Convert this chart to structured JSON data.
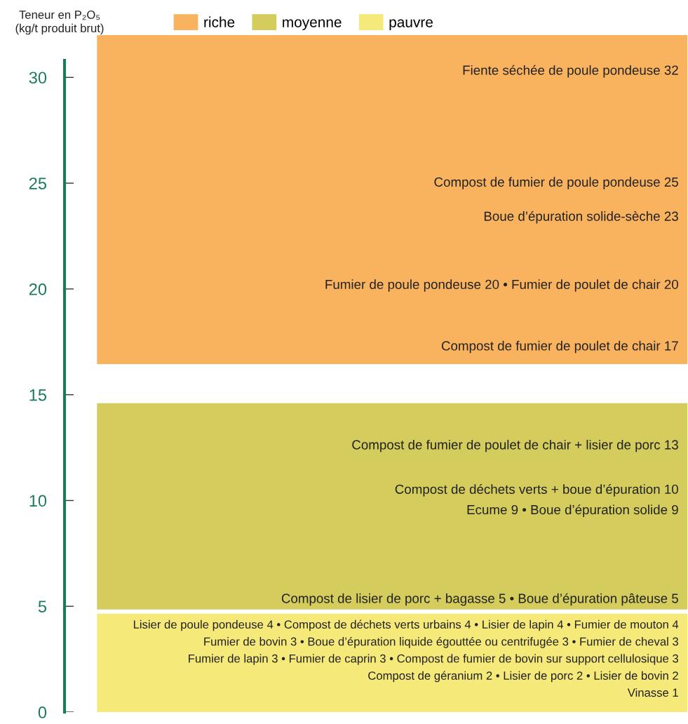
{
  "chart_data": {
    "type": "bar",
    "ylabel": "Teneur en P₂O₅\n(kg/t produit brut)",
    "ylim": [
      0,
      32
    ],
    "yticks": [
      0,
      5,
      10,
      15,
      20,
      25,
      30
    ],
    "categories": [
      null
    ],
    "legend": "top",
    "series": [
      {
        "name": "riche",
        "color": "#f9b35f",
        "values": [
          15.55
        ],
        "base": [
          16.45
        ]
      },
      {
        "name": "moyenne",
        "color": "#d4cc5c",
        "values": [
          9.75
        ],
        "base": [
          4.85
        ]
      },
      {
        "name": "pauvre",
        "color": "#f5e97a",
        "values": [
          4.65
        ],
        "base": [
          0
        ]
      }
    ],
    "annotations": [
      "Fiente séchée de poule pondeuse 32",
      "Compost de fumier de poule pondeuse 25",
      "Boue d’épuration solide-sèche 23",
      "Fumier de poule pondeuse 20 • Fumier de poulet de chair 20",
      "Compost de fumier de poulet de chair 17",
      "Compost de fumier de poulet de chair + lisier de porc 13",
      "Compost de déchets verts + boue d’épuration 10",
      "Ecume 9 • Boue d’épuration solide 9",
      "Compost de lisier de porc + bagasse 5 • Boue d’épuration pâteuse 5",
      "Lisier de poule pondeuse 4 • Compost de déchets verts urbains 4 • Lisier de lapin 4 • Fumier de mouton 4",
      "Fumier de bovin 3 • Boue d’épuration liquide égouttée ou centrifugée 3 • Fumier de cheval 3",
      "Fumier de lapin 3 • Fumier de caprin 3 • Compost de fumier de bovin sur support cellulosique 3",
      "Compost de géranium 2 • Lisier de porc 2 • Lisier de bovin 2",
      "Vinasse 1"
    ]
  }
}
